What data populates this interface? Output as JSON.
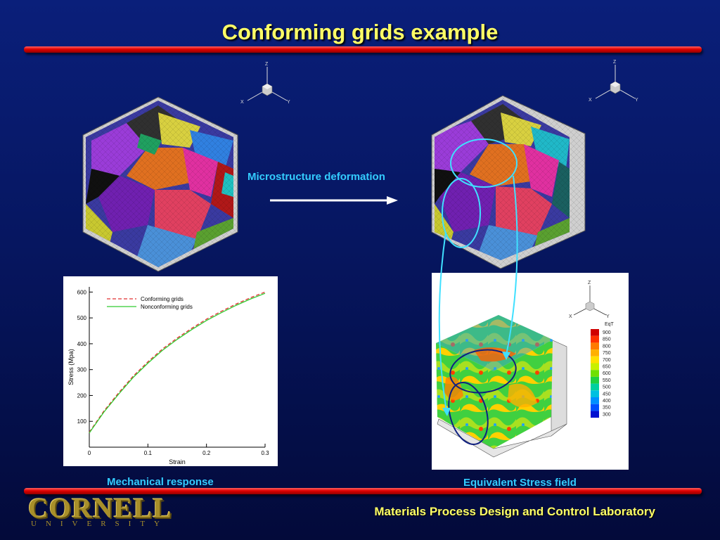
{
  "slide": {
    "title": "Conforming grids example",
    "arrow_label": "Microstructure deformation",
    "caption_left": "Mechanical response",
    "caption_right": "Equivalent Stress field",
    "footer": "Materials Process Design and Control Laboratory",
    "logo_word": "CORNELL",
    "logo_sub": "UNIVERSITY"
  },
  "axes_triad": {
    "z": "Z",
    "x": "X",
    "y": "Y"
  },
  "chart_data": {
    "type": "line",
    "xlabel": "Strain",
    "ylabel": "Stress (Mpa)",
    "xlim": [
      0,
      0.3
    ],
    "ylim": [
      0,
      620
    ],
    "xticks": [
      "0",
      "0.1",
      "0.2",
      "0.3"
    ],
    "yticks": [
      "100",
      "200",
      "300",
      "400",
      "500",
      "600"
    ],
    "legend_position": "top-left",
    "series": [
      {
        "name": "Conforming grids",
        "style": "dashed",
        "color": "#e03030",
        "x": [
          0,
          0.025,
          0.05,
          0.075,
          0.1,
          0.125,
          0.15,
          0.175,
          0.2,
          0.225,
          0.25,
          0.275,
          0.3
        ],
        "y": [
          58,
          140,
          210,
          275,
          330,
          380,
          422,
          460,
          495,
          525,
          553,
          578,
          600
        ]
      },
      {
        "name": "Nonconforming grids",
        "style": "solid",
        "color": "#30cc30",
        "x": [
          0,
          0.025,
          0.05,
          0.075,
          0.1,
          0.125,
          0.15,
          0.175,
          0.2,
          0.225,
          0.25,
          0.275,
          0.3
        ],
        "y": [
          55,
          136,
          205,
          270,
          325,
          375,
          417,
          455,
          490,
          520,
          548,
          573,
          595
        ]
      }
    ]
  },
  "colorbar": {
    "title": "EqT",
    "levels": [
      "900",
      "850",
      "800",
      "750",
      "700",
      "650",
      "600",
      "550",
      "500",
      "450",
      "400",
      "350",
      "300"
    ],
    "colors": [
      "#d00000",
      "#ff3000",
      "#ff7a00",
      "#ffb000",
      "#ffe000",
      "#c8f000",
      "#70e000",
      "#20d040",
      "#00d0a0",
      "#00c0e0",
      "#0090ff",
      "#0050ff",
      "#0010d0"
    ]
  },
  "colors": {
    "title": "#ffff66",
    "accent_label": "#33ccff",
    "bar": "#e00000"
  }
}
